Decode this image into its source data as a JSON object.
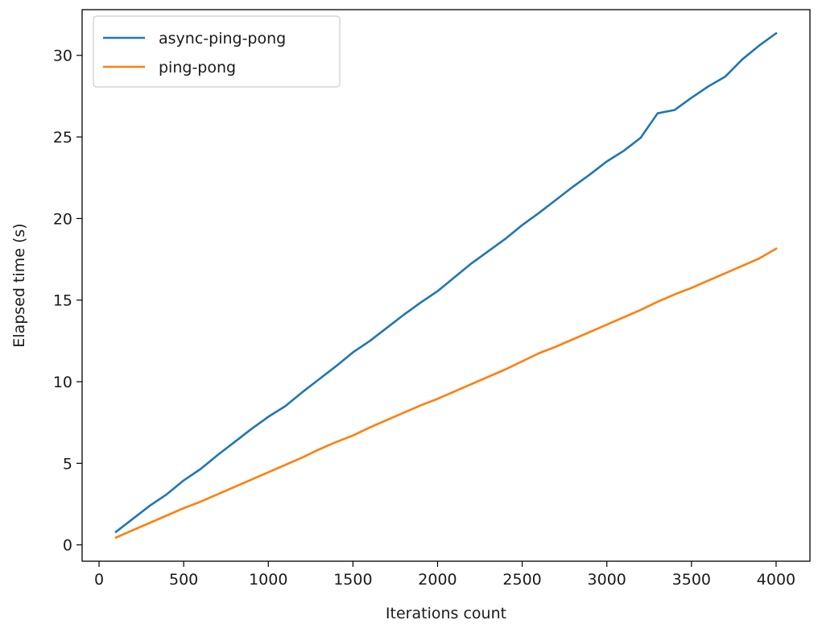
{
  "chart_data": {
    "type": "line",
    "title": "",
    "xlabel": "Iterations count",
    "ylabel": "Elapsed time (s)",
    "xlim": [
      -100,
      4200
    ],
    "ylim": [
      -1.0,
      32.8
    ],
    "xticks": [
      0,
      500,
      1000,
      1500,
      2000,
      2500,
      3000,
      3500,
      4000
    ],
    "yticks": [
      0,
      5,
      10,
      15,
      20,
      25,
      30
    ],
    "grid": false,
    "legend": "top-left",
    "x": [
      100,
      200,
      300,
      400,
      500,
      600,
      700,
      800,
      900,
      1000,
      1100,
      1200,
      1300,
      1400,
      1500,
      1600,
      1700,
      1800,
      1900,
      2000,
      2100,
      2200,
      2300,
      2400,
      2500,
      2600,
      2700,
      2800,
      2900,
      3000,
      3100,
      3200,
      3300,
      3400,
      3500,
      3600,
      3700,
      3800,
      3900,
      4000
    ],
    "series": [
      {
        "name": "async-ping-pong",
        "color": "#1f77b4",
        "values": [
          0.8,
          1.6,
          2.4,
          3.1,
          3.95,
          4.65,
          5.5,
          6.3,
          7.1,
          7.85,
          8.5,
          9.35,
          10.15,
          10.95,
          11.8,
          12.5,
          13.3,
          14.1,
          14.85,
          15.55,
          16.4,
          17.25,
          18.0,
          18.75,
          19.6,
          20.35,
          21.15,
          21.95,
          22.7,
          23.5,
          24.15,
          24.95,
          26.45,
          26.65,
          27.4,
          28.1,
          28.7,
          29.75,
          30.6,
          31.35
        ]
      },
      {
        "name": "ping-pong",
        "color": "#ff7f0e",
        "values": [
          0.45,
          0.9,
          1.35,
          1.8,
          2.25,
          2.65,
          3.1,
          3.55,
          4.0,
          4.45,
          4.9,
          5.35,
          5.85,
          6.3,
          6.7,
          7.2,
          7.65,
          8.1,
          8.55,
          8.95,
          9.4,
          9.85,
          10.3,
          10.75,
          11.25,
          11.75,
          12.15,
          12.6,
          13.05,
          13.5,
          13.95,
          14.4,
          14.9,
          15.35,
          15.75,
          16.2,
          16.65,
          17.1,
          17.55,
          18.15
        ]
      }
    ]
  }
}
